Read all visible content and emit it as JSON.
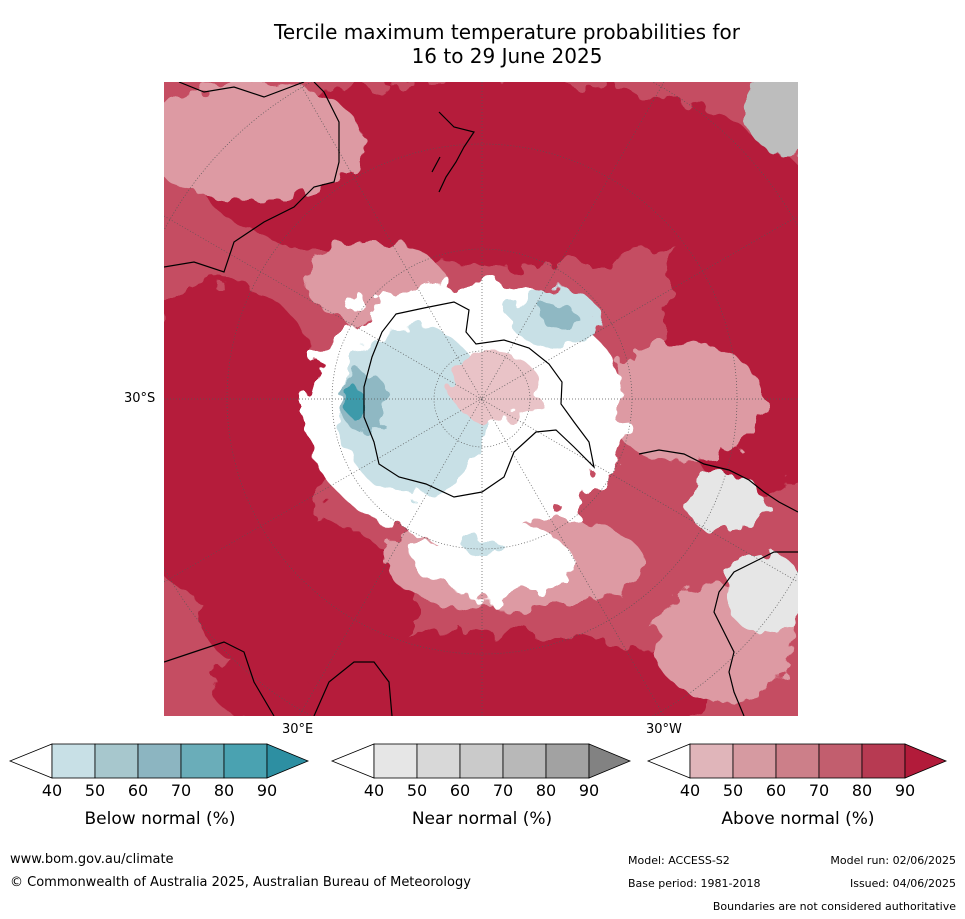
{
  "title": {
    "line1": "Tercile maximum temperature probabilities for",
    "line2": "16 to 29 June 2025"
  },
  "map": {
    "lat_label": "30°S",
    "lon_labels": [
      "30°E",
      "30°W"
    ],
    "colors": {
      "above_deep": "#b51c3b",
      "above_mid": "#c9576a",
      "above_light": "#dd9aa3",
      "above_faint": "#e9c3c7",
      "near": "#e6e6e6",
      "near_grey": "#bdbdbd",
      "below_light": "#c8e0e6",
      "below_mid": "#8fb8c3",
      "below_deep": "#3e9aaa",
      "white": "#ffffff"
    }
  },
  "colorbars": [
    {
      "title": "Below normal (%)",
      "ticks": [
        "40",
        "50",
        "60",
        "70",
        "80",
        "90"
      ],
      "colors": [
        "#ffffff",
        "#c8e0e6",
        "#a7c7cd",
        "#8cb5c1",
        "#6aadb9",
        "#4aa2b1",
        "#2d8fa2"
      ]
    },
    {
      "title": "Near normal (%)",
      "ticks": [
        "40",
        "50",
        "60",
        "70",
        "80",
        "90"
      ],
      "colors": [
        "#ffffff",
        "#e6e6e6",
        "#d8d8d8",
        "#cacaca",
        "#b8b8b8",
        "#a2a2a2",
        "#828282"
      ]
    },
    {
      "title": "Above normal (%)",
      "ticks": [
        "40",
        "50",
        "60",
        "70",
        "80",
        "90"
      ],
      "colors": [
        "#ffffff",
        "#e0b5ba",
        "#d69aa1",
        "#cc7f89",
        "#c25e6e",
        "#b73a52",
        "#b21b3a"
      ]
    }
  ],
  "footer": {
    "url": "www.bom.gov.au/climate",
    "copyright": "© Commonwealth of Australia 2025, Australian Bureau of Meteorology",
    "model": "Model: ACCESS-S2",
    "base_period": "Base period: 1981-2018",
    "model_run": "Model run: 02/06/2025",
    "issued": "Issued: 04/06/2025",
    "disclaimer": "Boundaries are not considered authoritative"
  }
}
